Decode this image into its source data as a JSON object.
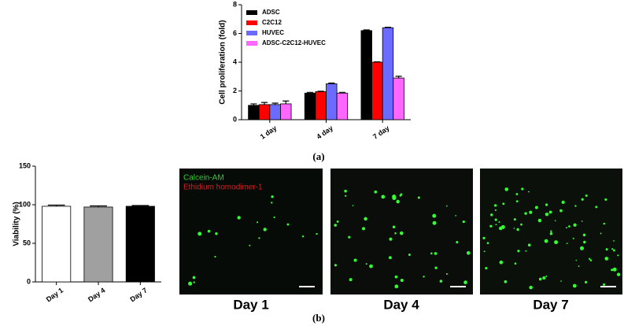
{
  "chart_data": [
    {
      "type": "bar",
      "y_label": "Cell proliferation (fold)",
      "categories": [
        "1 day",
        "4 day",
        "7 day"
      ],
      "series": [
        {
          "name": "ADSC",
          "color": "#000000",
          "values": [
            1.0,
            1.85,
            6.2
          ],
          "errors": [
            0.1,
            0.05,
            0.05
          ]
        },
        {
          "name": "C2C12",
          "color": "#ff0000",
          "values": [
            1.05,
            1.95,
            4.0
          ],
          "errors": [
            0.15,
            0.03,
            0.03
          ]
        },
        {
          "name": "HUVEC",
          "color": "#6b6bff",
          "values": [
            1.05,
            2.5,
            6.4
          ],
          "errors": [
            0.1,
            0.05,
            0.03
          ]
        },
        {
          "name": "ADSC-C2C12-HUVEC",
          "color": "#ff66ff",
          "values": [
            1.1,
            1.85,
            2.9
          ],
          "errors": [
            0.2,
            0.05,
            0.12
          ]
        }
      ],
      "ylim": [
        0,
        8
      ],
      "yticks": [
        0,
        2,
        4,
        6,
        8
      ],
      "legend": "top-left",
      "grid": false
    },
    {
      "type": "bar",
      "y_label": "Viability (%)",
      "categories": [
        "Day 1",
        "Day 4",
        "Day 7"
      ],
      "values": [
        98,
        97,
        98
      ],
      "errors": [
        1.5,
        1.5,
        1
      ],
      "colors": [
        "#ffffff",
        "#a0a0a0",
        "#000000"
      ],
      "ylim": [
        0,
        150
      ],
      "yticks": [
        0,
        50,
        100,
        150
      ],
      "grid": false
    }
  ],
  "panel_labels": [
    "(a)",
    "(b)"
  ],
  "images": {
    "legend": [
      "Calcein-AM",
      "Ethidium homodimer-1"
    ],
    "captions": [
      "Day 1",
      "Day 4",
      "Day 7"
    ]
  }
}
